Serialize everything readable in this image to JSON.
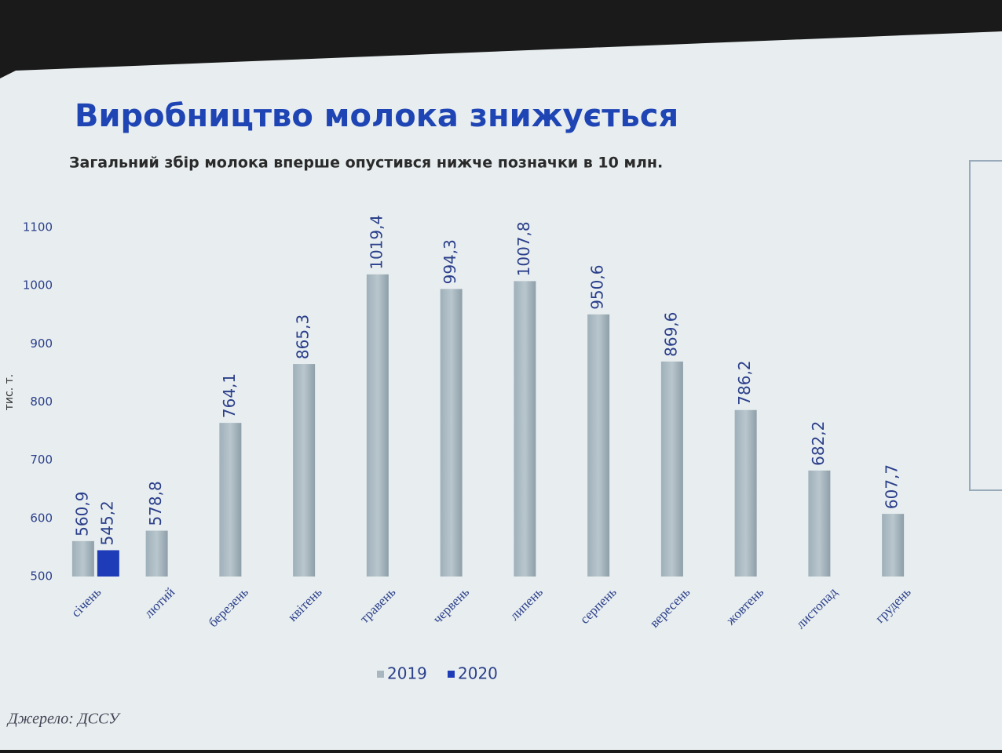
{
  "chart_data": {
    "type": "bar",
    "title": "Виробництво молока знижується",
    "subtitle": "Загальний збір молока вперше опустився нижче позначки в 10 млн.",
    "y_axis_label": "тис. т.",
    "source": "Джерело: ДССУ",
    "categories": [
      "січень",
      "лютий",
      "березень",
      "квітень",
      "травень",
      "червень",
      "липень",
      "серпень",
      "вересень",
      "жовтень",
      "листопад",
      "грудень"
    ],
    "series": [
      {
        "name": "2019",
        "color": "#a7b6bf",
        "values": [
          560.9,
          578.8,
          764.1,
          865.3,
          1019.4,
          994.3,
          1007.8,
          950.6,
          869.6,
          786.2,
          682.2,
          607.7
        ],
        "value_labels": [
          "560,9",
          "578,8",
          "764,1",
          "865,3",
          "1019,4",
          "994,3",
          "1007,8",
          "950,6",
          "869,6",
          "786,2",
          "682,2",
          "607,7"
        ]
      },
      {
        "name": "2020",
        "color": "#1e3cb8",
        "values": [
          545.2,
          null,
          null,
          null,
          null,
          null,
          null,
          null,
          null,
          null,
          null,
          null
        ],
        "value_labels": [
          "545,2",
          null,
          null,
          null,
          null,
          null,
          null,
          null,
          null,
          null,
          null,
          null
        ]
      }
    ],
    "ylim": [
      500,
      1100
    ],
    "yticks": [
      500,
      600,
      700,
      800,
      900,
      1000,
      1100
    ],
    "legend": "bottom"
  }
}
